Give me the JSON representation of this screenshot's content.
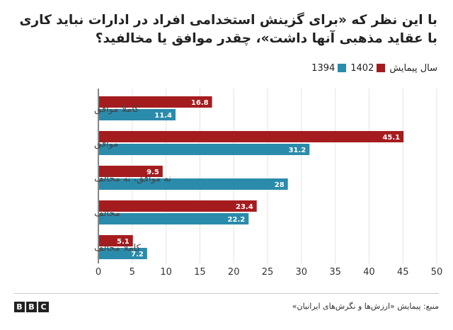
{
  "title": "با این نظر که «برای گزینش استخدامی افراد در ادارات نباید کاری با عقاید مذهبی آنها داشت»، چقدر موافق یا مخالفید؟",
  "legend": {
    "label": "سال پیمایش",
    "items": [
      {
        "name": "1402",
        "color": "#a51c1f"
      },
      {
        "name": "1394",
        "color": "#2a8bab"
      }
    ]
  },
  "chart_data": {
    "type": "bar",
    "orientation": "horizontal",
    "categories": [
      "کاملا موافق",
      "موافق",
      "نه موافق، نه مخالف",
      "مخالف",
      "کاملا مخالف"
    ],
    "series": [
      {
        "name": "1402",
        "color": "#a51c1f",
        "values": [
          16.8,
          45.1,
          9.5,
          23.4,
          5.1
        ]
      },
      {
        "name": "1394",
        "color": "#2a8bab",
        "values": [
          11.4,
          31.2,
          28,
          22.2,
          7.2
        ]
      }
    ],
    "xlim": [
      0,
      50
    ],
    "xticks": [
      0,
      5,
      10,
      15,
      20,
      25,
      30,
      35,
      40,
      45,
      50
    ],
    "grid": true,
    "legend_position": "top-right"
  },
  "logo": {
    "letters": [
      "B",
      "B",
      "C"
    ]
  },
  "source": "منبع: پیمایش «ارزش‌ها و نگرش‌های ایرانیان»"
}
